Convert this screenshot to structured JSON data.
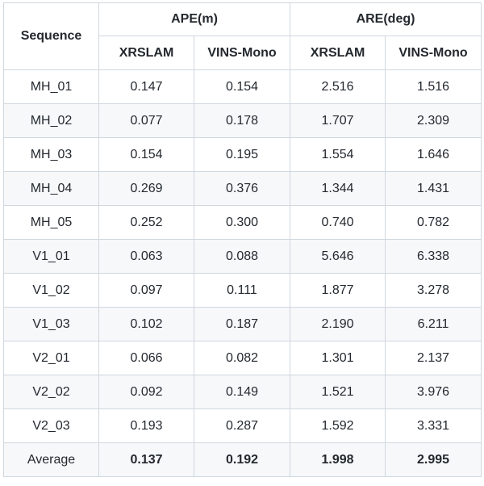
{
  "table": {
    "header": {
      "sequence_label": "Sequence",
      "groups": [
        "APE(m)",
        "ARE(deg)"
      ],
      "methods": [
        "XRSLAM",
        "VINS-Mono",
        "XRSLAM",
        "VINS-Mono"
      ]
    },
    "rows": [
      {
        "sequence": "MH_01",
        "values": [
          "0.147",
          "0.154",
          "2.516",
          "1.516"
        ]
      },
      {
        "sequence": "MH_02",
        "values": [
          "0.077",
          "0.178",
          "1.707",
          "2.309"
        ]
      },
      {
        "sequence": "MH_03",
        "values": [
          "0.154",
          "0.195",
          "1.554",
          "1.646"
        ]
      },
      {
        "sequence": "MH_04",
        "values": [
          "0.269",
          "0.376",
          "1.344",
          "1.431"
        ]
      },
      {
        "sequence": "MH_05",
        "values": [
          "0.252",
          "0.300",
          "0.740",
          "0.782"
        ]
      },
      {
        "sequence": "V1_01",
        "values": [
          "0.063",
          "0.088",
          "5.646",
          "6.338"
        ]
      },
      {
        "sequence": "V1_02",
        "values": [
          "0.097",
          "0.111",
          "1.877",
          "3.278"
        ]
      },
      {
        "sequence": "V1_03",
        "values": [
          "0.102",
          "0.187",
          "2.190",
          "6.211"
        ]
      },
      {
        "sequence": "V2_01",
        "values": [
          "0.066",
          "0.082",
          "1.301",
          "2.137"
        ]
      },
      {
        "sequence": "V2_02",
        "values": [
          "0.092",
          "0.149",
          "1.521",
          "3.976"
        ]
      },
      {
        "sequence": "V2_03",
        "values": [
          "0.193",
          "0.287",
          "1.592",
          "3.331"
        ]
      }
    ],
    "average": {
      "label": "Average",
      "values": [
        "0.137",
        "0.192",
        "1.998",
        "2.995"
      ]
    }
  },
  "colors": {
    "border": "#d0d7de",
    "stripe": "#f6f8fa",
    "text": "#24292f"
  }
}
